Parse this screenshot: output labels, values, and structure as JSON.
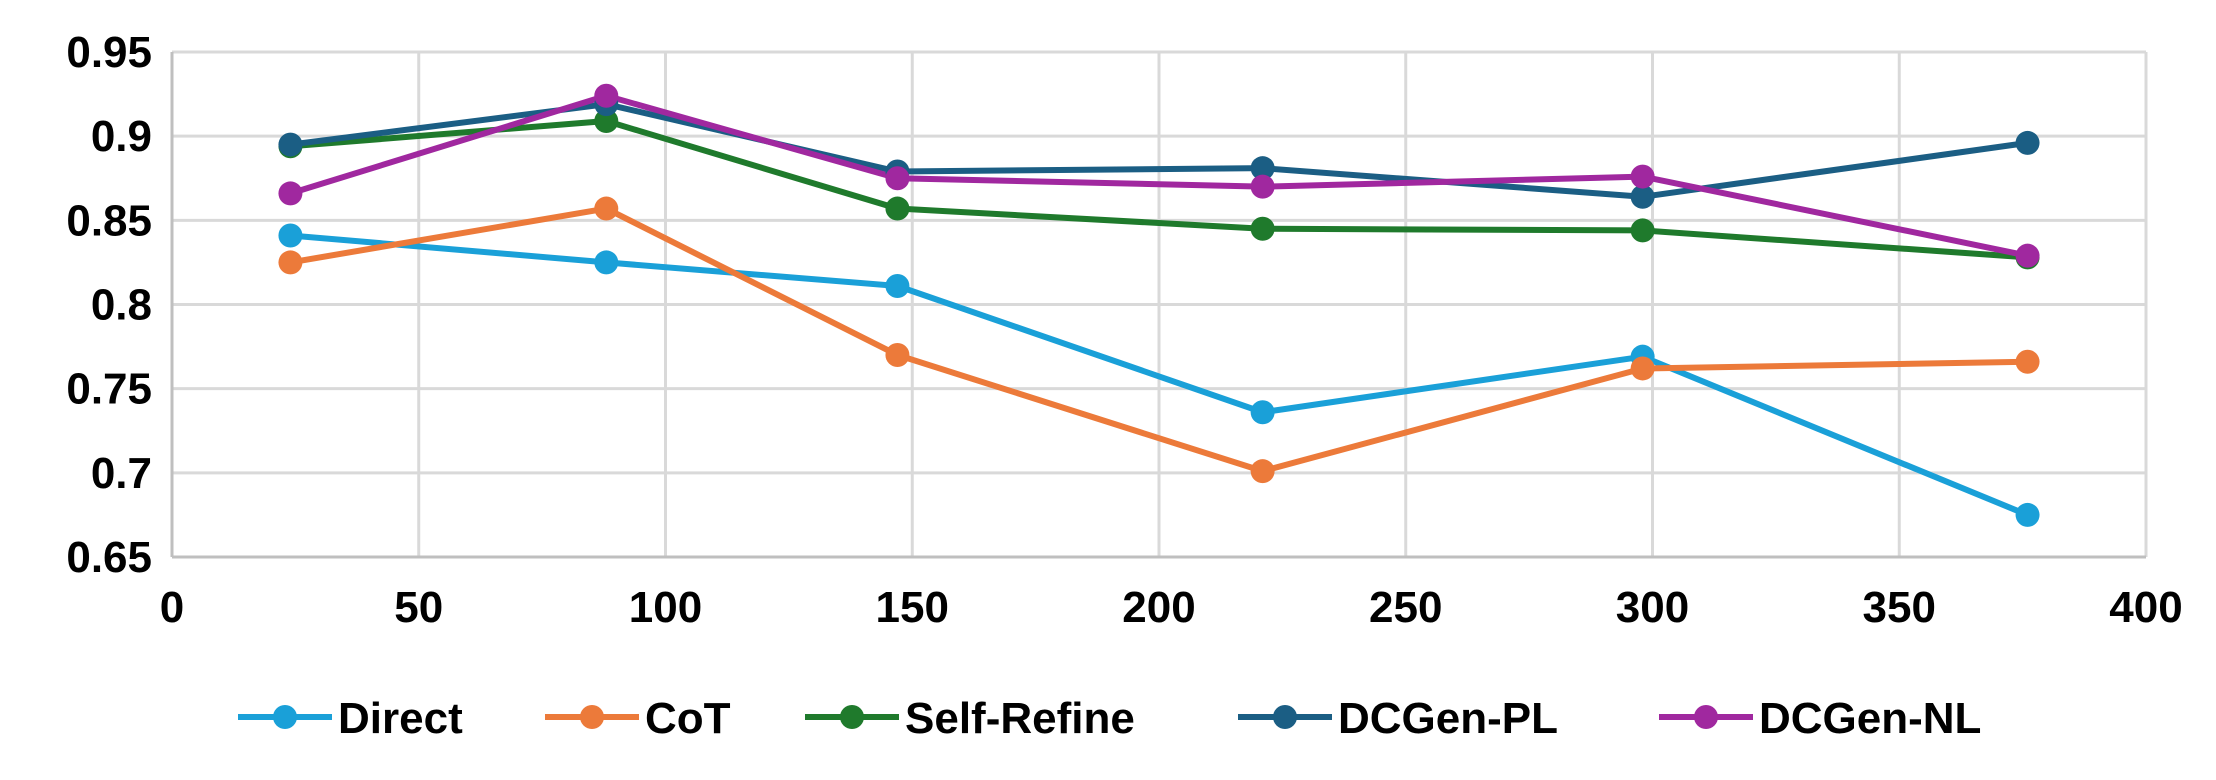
{
  "chart_data": {
    "type": "line",
    "title": "",
    "xlabel": "",
    "ylabel": "",
    "xlim": [
      0,
      400
    ],
    "ylim": [
      0.65,
      0.95
    ],
    "x_ticks": [
      0,
      50,
      100,
      150,
      200,
      250,
      300,
      350,
      400
    ],
    "x_tick_labels": [
      "0",
      "50",
      "100",
      "150",
      "200",
      "250",
      "300",
      "350",
      "400"
    ],
    "y_ticks": [
      0.65,
      0.7,
      0.75,
      0.8,
      0.85,
      0.9,
      0.95
    ],
    "y_tick_labels": [
      "0.65",
      "0.7",
      "0.75",
      "0.8",
      "0.85",
      "0.9",
      "0.95"
    ],
    "grid": true,
    "legend_position": "bottom",
    "x": [
      24,
      88,
      147,
      221,
      298,
      376
    ],
    "series": [
      {
        "name": "Direct",
        "color": "#1aa0d8",
        "values": [
          0.841,
          0.825,
          0.811,
          0.736,
          0.769,
          0.675
        ]
      },
      {
        "name": "CoT",
        "color": "#ec7a3a",
        "values": [
          0.825,
          0.857,
          0.77,
          0.701,
          0.762,
          0.766
        ]
      },
      {
        "name": "Self-Refine",
        "color": "#1f7a2c",
        "values": [
          0.894,
          0.909,
          0.857,
          0.845,
          0.844,
          0.828
        ]
      },
      {
        "name": "DCGen-PL",
        "color": "#1b5e84",
        "values": [
          0.895,
          0.919,
          0.879,
          0.881,
          0.864,
          0.896
        ]
      },
      {
        "name": "DCGen-NL",
        "color": "#a0289f",
        "values": [
          0.866,
          0.924,
          0.875,
          0.87,
          0.876,
          0.829
        ]
      }
    ]
  }
}
